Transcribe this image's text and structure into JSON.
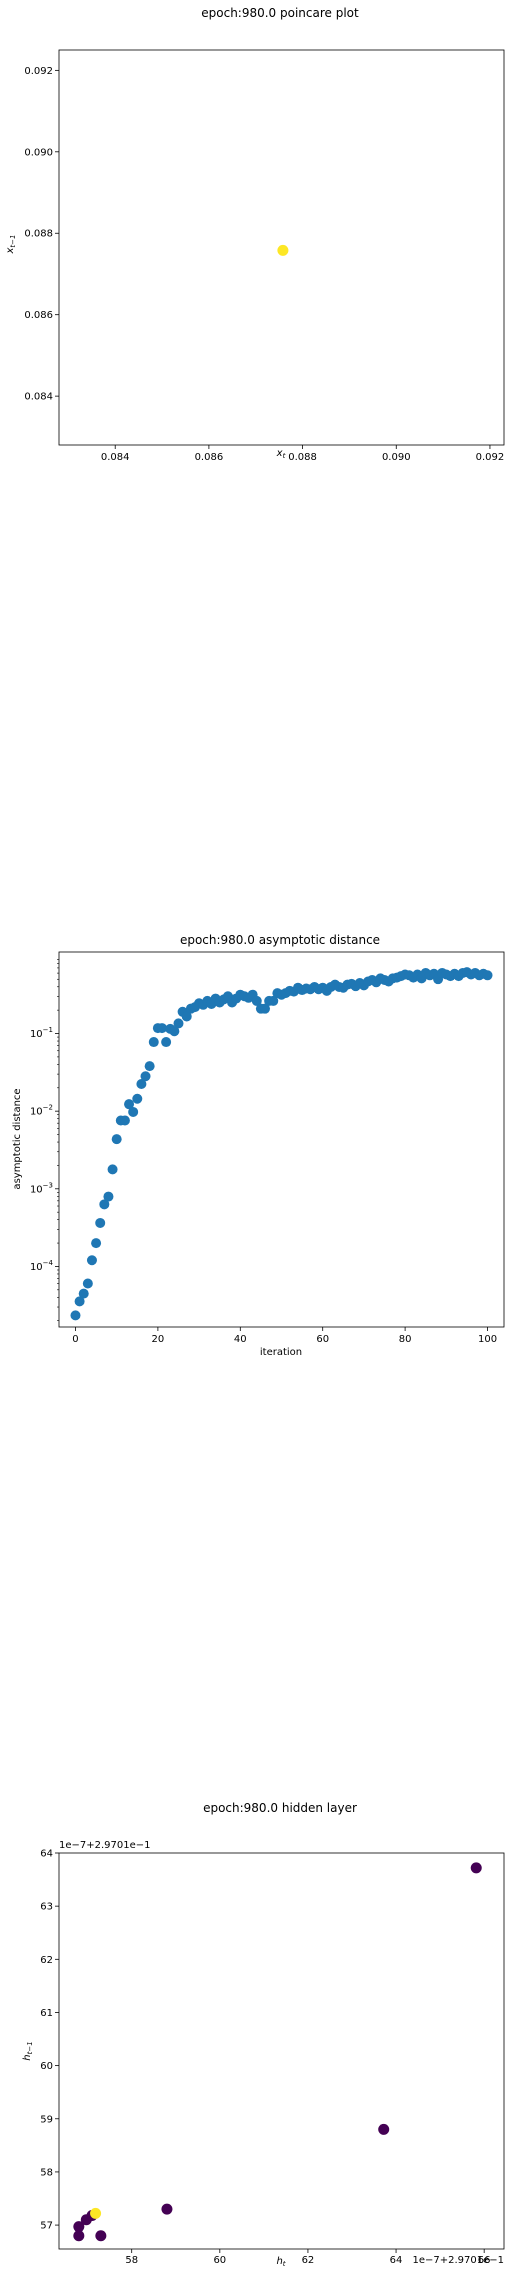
{
  "chart_data": [
    {
      "type": "scatter",
      "title": "epoch:980.0 poincare plot",
      "xlabel": "x_t",
      "ylabel": "x_{t-1}",
      "xlim": [
        0.0828,
        0.0923
      ],
      "ylim": [
        0.0828,
        0.0925
      ],
      "xticks": [
        "0.084",
        "0.086",
        "0.088",
        "0.090",
        "0.092"
      ],
      "yticks": [
        "0.084",
        "0.086",
        "0.088",
        "0.090",
        "0.092"
      ],
      "xtick_values": [
        0.084,
        0.086,
        0.088,
        0.09,
        0.092
      ],
      "ytick_values": [
        0.084,
        0.086,
        0.088,
        0.09,
        0.092
      ],
      "points": [
        {
          "x": 0.08758,
          "y": 0.08758
        }
      ],
      "color": "#fde725"
    },
    {
      "type": "scatter",
      "title": "epoch:980.0 asymptotic distance",
      "xlabel": "iteration",
      "ylabel": "asymptotic distance",
      "yscale": "log",
      "xlim": [
        -4,
        104
      ],
      "ylim_log10": [
        -4.78,
        0.05
      ],
      "xticks": [
        "0",
        "20",
        "40",
        "60",
        "80",
        "100"
      ],
      "xtick_values": [
        0,
        20,
        40,
        60,
        80,
        100
      ],
      "yticks": [
        {
          "exp": "-4",
          "value": -4
        },
        {
          "exp": "-3",
          "value": -3
        },
        {
          "exp": "-2",
          "value": -2
        },
        {
          "exp": "-1",
          "value": -1
        }
      ],
      "tick_base": "10",
      "color": "#1f77b4",
      "log10_values": [
        -4.63,
        -4.45,
        -4.35,
        -4.22,
        -3.92,
        -3.7,
        -3.44,
        -3.2,
        -3.1,
        -2.75,
        -2.36,
        -2.12,
        -2.12,
        -1.91,
        -2.01,
        -1.84,
        -1.65,
        -1.55,
        -1.42,
        -1.11,
        -0.93,
        -0.93,
        -1.11,
        -0.94,
        -0.97,
        -0.87,
        -0.72,
        -0.78,
        -0.68,
        -0.66,
        -0.61,
        -0.63,
        -0.58,
        -0.62,
        -0.55,
        -0.6,
        -0.56,
        -0.52,
        -0.6,
        -0.55,
        -0.5,
        -0.52,
        -0.54,
        -0.5,
        -0.58,
        -0.68,
        -0.68,
        -0.58,
        -0.58,
        -0.48,
        -0.5,
        -0.48,
        -0.45,
        -0.46,
        -0.41,
        -0.44,
        -0.42,
        -0.43,
        -0.4,
        -0.43,
        -0.41,
        -0.45,
        -0.4,
        -0.37,
        -0.4,
        -0.41,
        -0.37,
        -0.36,
        -0.39,
        -0.35,
        -0.38,
        -0.33,
        -0.31,
        -0.34,
        -0.29,
        -0.31,
        -0.33,
        -0.29,
        -0.28,
        -0.26,
        -0.24,
        -0.25,
        -0.28,
        -0.24,
        -0.29,
        -0.22,
        -0.25,
        -0.23,
        -0.3,
        -0.22,
        -0.24,
        -0.26,
        -0.23,
        -0.26,
        -0.22,
        -0.21,
        -0.24,
        -0.22,
        -0.25,
        -0.23,
        -0.25
      ]
    },
    {
      "type": "scatter",
      "title": "epoch:980.0 hidden layer",
      "xlabel": "h_t",
      "ylabel": "h_{t-1}",
      "x_offset_text": "1e−7+2.9701e−1",
      "y_offset_text": "1e−7+2.9701e−1",
      "xlim": [
        56.35,
        66.45
      ],
      "ylim": [
        56.55,
        64.0
      ],
      "xticks": [
        "58",
        "60",
        "62",
        "64",
        "66"
      ],
      "yticks": [
        "57",
        "58",
        "59",
        "60",
        "61",
        "62",
        "63",
        "64"
      ],
      "xtick_values": [
        58,
        60,
        62,
        64,
        66
      ],
      "ytick_values": [
        57,
        58,
        59,
        60,
        61,
        62,
        63,
        64
      ],
      "points": [
        {
          "x": 65.82,
          "y": 63.72,
          "color": "#440154"
        },
        {
          "x": 63.72,
          "y": 58.8,
          "color": "#440154"
        },
        {
          "x": 58.8,
          "y": 57.3,
          "color": "#440154"
        },
        {
          "x": 57.3,
          "y": 56.8,
          "color": "#440154"
        },
        {
          "x": 56.8,
          "y": 56.8,
          "color": "#440154"
        },
        {
          "x": 56.8,
          "y": 56.97,
          "color": "#440154"
        },
        {
          "x": 56.97,
          "y": 57.1,
          "color": "#440154"
        },
        {
          "x": 57.1,
          "y": 57.18,
          "color": "#440154"
        },
        {
          "x": 57.18,
          "y": 57.22,
          "color": "#fde725"
        }
      ]
    }
  ]
}
